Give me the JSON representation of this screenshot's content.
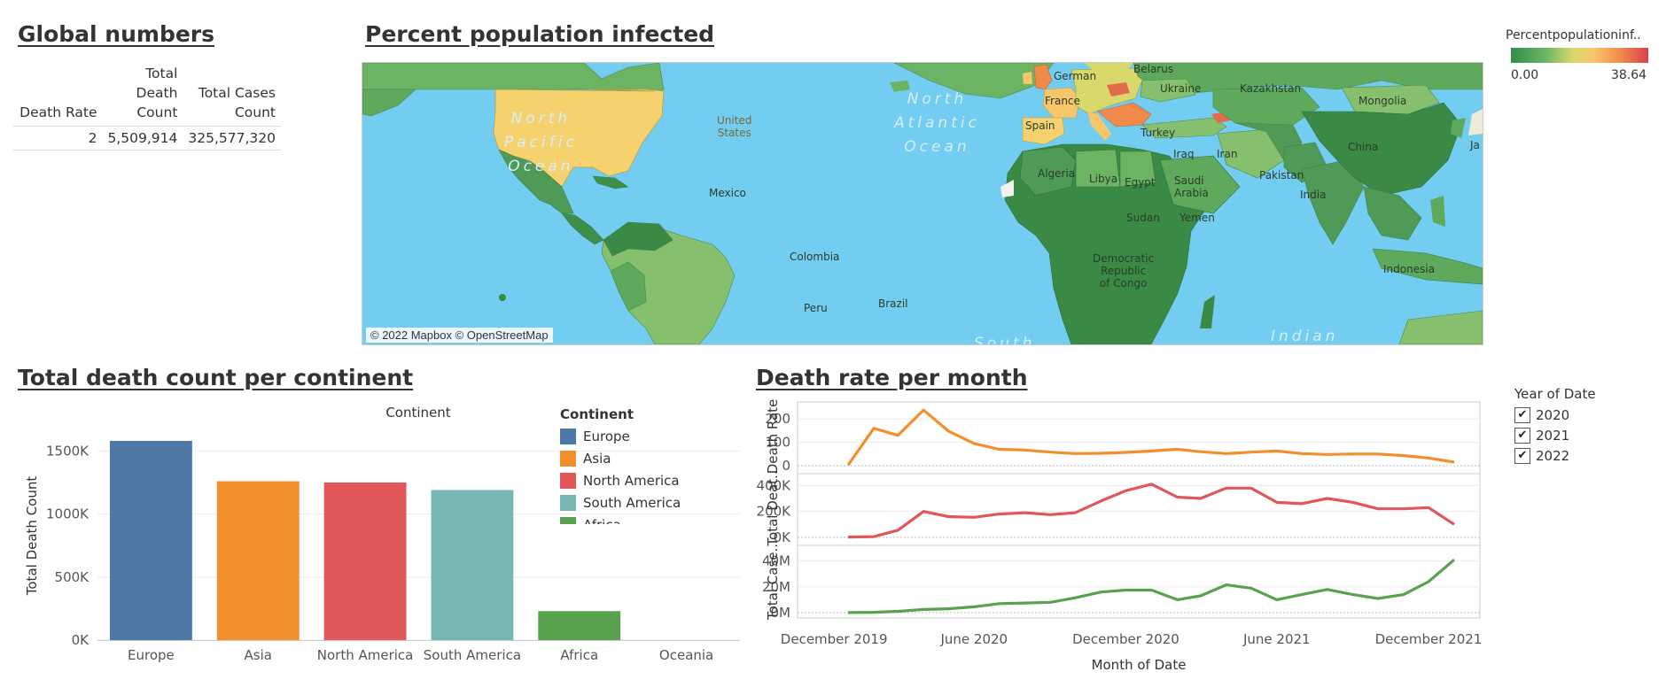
{
  "global_numbers": {
    "title": "Global numbers",
    "headers": [
      "Death Rate",
      "Total Death Count",
      "Total Cases Count"
    ],
    "row": [
      "2",
      "5,509,914",
      "325,577,320"
    ]
  },
  "map": {
    "title": "Percent population infected",
    "attribution": "© 2022 Mapbox © OpenStreetMap",
    "legend_title": "Percentpopulationinf..",
    "legend_min": "0.00",
    "legend_max": "38.64",
    "colors": {
      "ocean": "#72cdf0",
      "low": "#2f8f4a",
      "mid": "#6cb464",
      "high": "#d8424a",
      "us": "#f5d26e"
    },
    "country_labels": [
      {
        "id": "united-states",
        "text": "United\nStates"
      },
      {
        "id": "mexico",
        "text": "Mexico"
      },
      {
        "id": "colombia",
        "text": "Colombia"
      },
      {
        "id": "peru",
        "text": "Peru"
      },
      {
        "id": "brazil",
        "text": "Brazil"
      },
      {
        "id": "algeria",
        "text": "Algeria"
      },
      {
        "id": "libya",
        "text": "Libya"
      },
      {
        "id": "egypt",
        "text": "Egypt"
      },
      {
        "id": "sudan",
        "text": "Sudan"
      },
      {
        "id": "drc",
        "text": "Democratic\nRepublic\nof Congo"
      },
      {
        "id": "saudi-arabia",
        "text": "Saudi\nArabia"
      },
      {
        "id": "yemen",
        "text": "Yemen"
      },
      {
        "id": "iraq",
        "text": "Iraq"
      },
      {
        "id": "iran",
        "text": "Iran"
      },
      {
        "id": "turkey",
        "text": "Turkey"
      },
      {
        "id": "spain",
        "text": "Spain"
      },
      {
        "id": "france",
        "text": "France"
      },
      {
        "id": "germany",
        "text": "German"
      },
      {
        "id": "belarus",
        "text": "Belarus"
      },
      {
        "id": "ukraine",
        "text": "Ukraine"
      },
      {
        "id": "kazakhstan",
        "text": "Kazakhstan"
      },
      {
        "id": "mongolia",
        "text": "Mongolia"
      },
      {
        "id": "china",
        "text": "China"
      },
      {
        "id": "pakistan",
        "text": "Pakistan"
      },
      {
        "id": "india",
        "text": "India"
      },
      {
        "id": "indonesia",
        "text": "Indonesia"
      },
      {
        "id": "japan",
        "text": "Ja"
      }
    ],
    "ocean_labels": [
      {
        "id": "north-pacific",
        "text": "North\nPacific\nOcean"
      },
      {
        "id": "north-atlantic",
        "text": "North\nAtlantic\nOcean"
      },
      {
        "id": "south",
        "text": "South"
      },
      {
        "id": "indian",
        "text": "Indian"
      }
    ]
  },
  "bar_chart": {
    "title": "Total death count per continent"
  },
  "line_chart": {
    "title": "Death rate per month"
  },
  "year_filter": {
    "title": "Year of Date",
    "items": [
      {
        "label": "2020",
        "checked": "✔"
      },
      {
        "label": "2021",
        "checked": "✔"
      },
      {
        "label": "2022",
        "checked": "✔"
      }
    ]
  },
  "chart_data": [
    {
      "type": "bar",
      "title": "Total death count per continent",
      "header": "Continent",
      "xlabel": "",
      "ylabel": "Total Death Count",
      "categories": [
        "Europe",
        "Asia",
        "North America",
        "South America",
        "Africa",
        "Oceania"
      ],
      "values": [
        1580000,
        1260000,
        1250000,
        1190000,
        230000,
        0
      ],
      "colors": [
        "#4e79a7",
        "#f28e2b",
        "#e15759",
        "#76b7b2",
        "#59a14f",
        "#edc948"
      ],
      "ylim": [
        0,
        1650000
      ],
      "yticks": [
        0,
        500000,
        1000000,
        1500000
      ],
      "ytick_labels": [
        "0K",
        "500K",
        "1000K",
        "1500K"
      ],
      "legend": {
        "title": "Continent",
        "placement": "top-right",
        "entries": [
          "Europe",
          "Asia",
          "North America",
          "South America",
          "Africa"
        ]
      },
      "grid": true
    },
    {
      "type": "line",
      "title": "Death rate per month",
      "xlabel": "Month of Date",
      "x_ticks": [
        "December 2019",
        "June 2020",
        "December 2020",
        "June 2021",
        "December 2021"
      ],
      "x": [
        "2020-01",
        "2020-02",
        "2020-03",
        "2020-04",
        "2020-05",
        "2020-06",
        "2020-07",
        "2020-08",
        "2020-09",
        "2020-10",
        "2020-11",
        "2020-12",
        "2021-01",
        "2021-02",
        "2021-03",
        "2021-04",
        "2021-05",
        "2021-06",
        "2021-07",
        "2021-08",
        "2021-09",
        "2021-10",
        "2021-11",
        "2021-12",
        "2022-01"
      ],
      "series": [
        {
          "name": "Death Rate",
          "ylabel": "Death Rate",
          "color": "#f28e2b",
          "ylim": [
            0,
            250
          ],
          "yticks": [
            0,
            100,
            200
          ],
          "ytick_labels": [
            "0",
            "100",
            "200"
          ],
          "values": [
            3,
            160,
            130,
            238,
            148,
            95,
            70,
            67,
            58,
            52,
            53,
            57,
            63,
            70,
            60,
            52,
            58,
            63,
            52,
            48,
            50,
            50,
            43,
            33,
            15
          ]
        },
        {
          "name": "Total Death Count",
          "ylabel": "Total Deat..",
          "color": "#e15759",
          "ylim": [
            0,
            450000
          ],
          "yticks": [
            0,
            200000,
            400000
          ],
          "ytick_labels": [
            "0K",
            "200K",
            "400K"
          ],
          "values": [
            3000,
            6000,
            55000,
            200000,
            160000,
            155000,
            180000,
            190000,
            175000,
            190000,
            280000,
            360000,
            410000,
            310000,
            300000,
            380000,
            380000,
            270000,
            260000,
            300000,
            270000,
            220000,
            220000,
            230000,
            100000
          ]
        },
        {
          "name": "Total Cases Count",
          "ylabel": "Total Case..",
          "color": "#59a14f",
          "ylim": [
            0,
            48000000
          ],
          "yticks": [
            0,
            20000000,
            40000000
          ],
          "ytick_labels": [
            "0M",
            "20M",
            "40M"
          ],
          "values": [
            100000,
            300000,
            1000000,
            2500000,
            3000000,
            4500000,
            7000000,
            7500000,
            8000000,
            11500000,
            16000000,
            17500000,
            17500000,
            10000000,
            13000000,
            21500000,
            19000000,
            10000000,
            14000000,
            18000000,
            14000000,
            11000000,
            14000000,
            24000000,
            41000000
          ]
        }
      ],
      "grid": true
    }
  ]
}
